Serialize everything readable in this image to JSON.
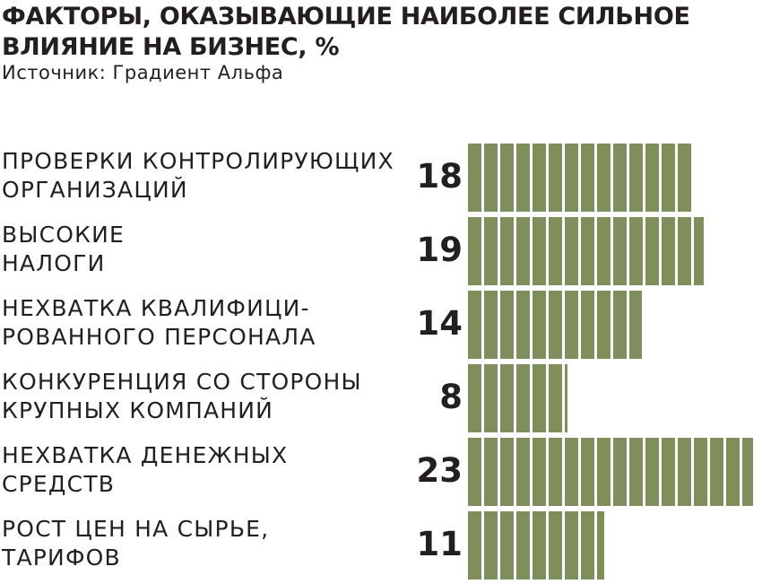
{
  "title": "ФАКТОРЫ, ОКАЗЫВАЮЩИЕ НАИБОЛЕЕ СИЛЬНОЕ ВЛИЯНИЕ НА БИЗНЕС, %",
  "source": "Источник: Градиент Альфа",
  "colors": {
    "bar": "#7e8f5b",
    "text": "#231f20",
    "background": "#ffffff"
  },
  "chart_data": {
    "type": "bar",
    "orientation": "horizontal",
    "title": "ФАКТОРЫ, ОКАЗЫВАЮЩИЕ НАИБОЛЕЕ СИЛЬНОЕ ВЛИЯНИЕ НА БИЗНЕС, %",
    "categories": [
      "ПРОВЕРКИ КОНТРОЛИРУЮЩИХ\nОРГАНИЗАЦИЙ",
      "ВЫСОКИЕ\nНАЛОГИ",
      "НЕХВАТКА КВАЛИФИЦИ-\nРОВАННОГО ПЕРСОНАЛА",
      "КОНКУРЕНЦИЯ СО СТОРОНЫ\nКРУПНЫХ КОМПАНИЙ",
      "НЕХВАТКА ДЕНЕЖНЫХ\nСРЕДСТВ",
      "РОСТ ЦЕН НА СЫРЬЕ,\nТАРИФОВ"
    ],
    "values": [
      18,
      19,
      14,
      8,
      23,
      11
    ],
    "xlim": [
      0,
      23
    ],
    "grid": false,
    "legend": "none"
  }
}
